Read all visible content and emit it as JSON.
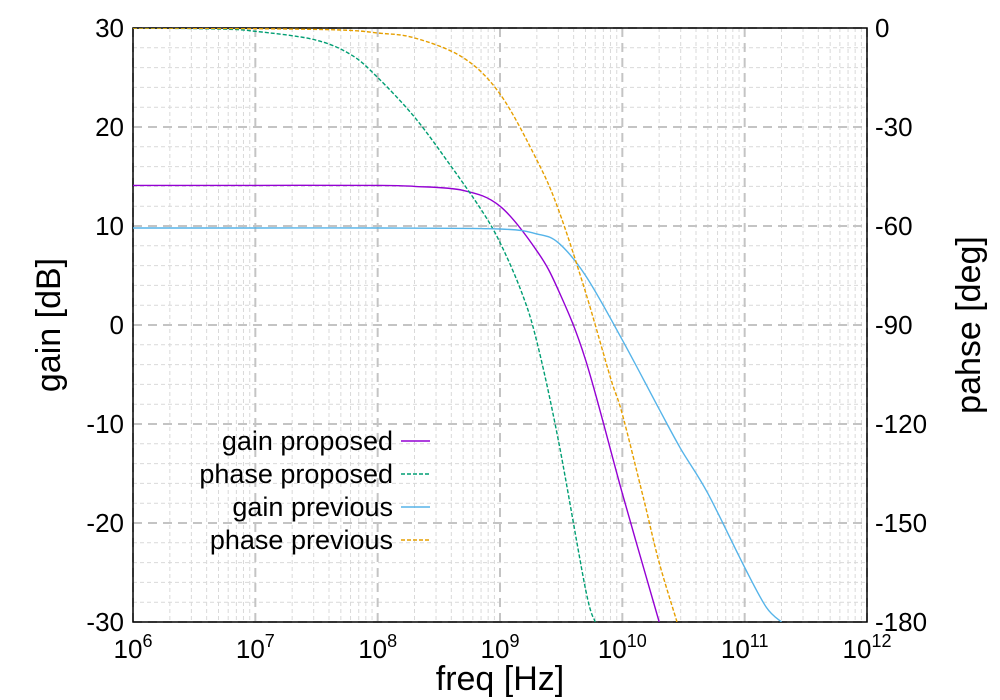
{
  "chart_data": {
    "type": "line",
    "xlabel": "freq [Hz]",
    "ylabel_left": "gain [dB]",
    "ylabel_right": "pahse [deg]",
    "x_scale": "log",
    "xlim": [
      1000000,
      1000000000000
    ],
    "ylim_left": [
      -30,
      30
    ],
    "ylim_right": [
      -180,
      0
    ],
    "grid": true,
    "x_ticks": [
      {
        "base": "10",
        "exp": "6"
      },
      {
        "base": "10",
        "exp": "7"
      },
      {
        "base": "10",
        "exp": "8"
      },
      {
        "base": "10",
        "exp": "9"
      },
      {
        "base": "10",
        "exp": "10"
      },
      {
        "base": "10",
        "exp": "11"
      },
      {
        "base": "10",
        "exp": "12"
      }
    ],
    "y_ticks_left": [
      "30",
      "20",
      "10",
      "0",
      "-10",
      "-20",
      "-30"
    ],
    "y_ticks_right": [
      "0",
      "-30",
      "-60",
      "-90",
      "-120",
      "-150",
      "-180"
    ],
    "legend_position": "lower-left",
    "series": [
      {
        "name": "gain proposed",
        "axis": "left",
        "color": "#9400d3",
        "dash": "solid",
        "x": [
          1000000,
          10000000,
          100000000,
          200000000,
          500000000,
          1000000000,
          2000000000,
          3000000000,
          5000000000,
          10000000000,
          20000000000
        ],
        "y": [
          14.1,
          14.1,
          14.1,
          14.0,
          13.6,
          12.0,
          7.5,
          3.5,
          -3.5,
          -17.0,
          -30.0
        ]
      },
      {
        "name": "phase proposed",
        "axis": "right",
        "color": "#009e73",
        "dash": "dashed",
        "x": [
          1000000,
          5000000,
          10000000,
          30000000,
          60000000,
          100000000,
          200000000,
          400000000,
          700000000,
          1000000000,
          1500000000,
          2000000000,
          3000000000,
          5000000000,
          6000000000
        ],
        "y": [
          0,
          -0.3,
          -1.0,
          -3.5,
          -8,
          -15,
          -27,
          -42,
          -55,
          -65,
          -80,
          -95,
          -125,
          -170,
          -180
        ]
      },
      {
        "name": "gain previous",
        "axis": "left",
        "color": "#56b4e9",
        "dash": "solid",
        "x": [
          1000000,
          10000000,
          100000000,
          1000000000,
          2000000000,
          3000000000,
          5000000000,
          10000000000,
          20000000000,
          30000000000,
          50000000000,
          100000000000,
          150000000000,
          200000000000
        ],
        "y": [
          9.8,
          9.8,
          9.8,
          9.7,
          9.2,
          8.3,
          5.0,
          -1.5,
          -8.5,
          -12.5,
          -17.0,
          -24.5,
          -28.5,
          -30.0
        ]
      },
      {
        "name": "phase previous",
        "axis": "right",
        "color": "#e69f00",
        "dash": "dashed",
        "x": [
          1000000,
          10000000,
          50000000,
          100000000,
          200000000,
          500000000,
          1000000000,
          2000000000,
          3000000000,
          5000000000,
          8000000000,
          10000000000,
          15000000000,
          20000000000,
          28000000000
        ],
        "y": [
          0,
          -0.2,
          -0.6,
          -1.5,
          -3,
          -9,
          -20,
          -40,
          -55,
          -80,
          -106,
          -117,
          -143,
          -162,
          -180
        ]
      }
    ]
  }
}
